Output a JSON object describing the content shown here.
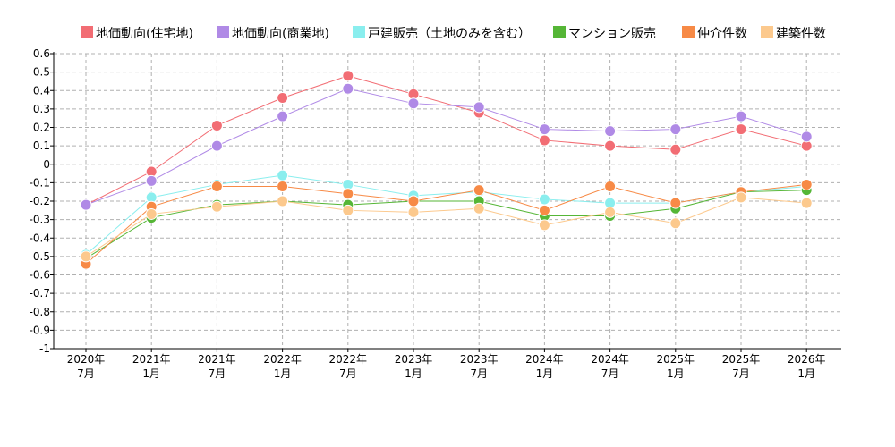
{
  "chart_data": {
    "type": "line",
    "categories": [
      [
        "2020年",
        "7月"
      ],
      [
        "2021年",
        "1月"
      ],
      [
        "2021年",
        "7月"
      ],
      [
        "2022年",
        "1月"
      ],
      [
        "2022年",
        "7月"
      ],
      [
        "2023年",
        "1月"
      ],
      [
        "2023年",
        "7月"
      ],
      [
        "2024年",
        "1月"
      ],
      [
        "2024年",
        "7月"
      ],
      [
        "2025年",
        "1月"
      ],
      [
        "2025年",
        "7月"
      ],
      [
        "2026年",
        "1月"
      ]
    ],
    "yticks": [
      "0.6",
      "0.5",
      "0.4",
      "0.3",
      "0.2",
      "0.1",
      "0",
      "-0.1",
      "-0.2",
      "-0.3",
      "-0.4",
      "-0.5",
      "-0.6",
      "-0.7",
      "-0.8",
      "-0.9",
      "-1"
    ],
    "ylim": [
      -1,
      0.6
    ],
    "grid": true,
    "legend_position": "top",
    "series": [
      {
        "name": "地価動向(住宅地)",
        "color": "#f26d74",
        "values": [
          -0.22,
          -0.04,
          0.21,
          0.36,
          0.48,
          0.38,
          0.28,
          0.13,
          0.1,
          0.08,
          0.19,
          0.1
        ]
      },
      {
        "name": "地価動向(商業地)",
        "color": "#b08ae6",
        "values": [
          -0.22,
          -0.09,
          0.1,
          0.26,
          0.41,
          0.33,
          0.31,
          0.19,
          0.18,
          0.19,
          0.26,
          0.15
        ]
      },
      {
        "name": "戸建販売（土地のみを含む）",
        "color": "#8aeeee",
        "values": [
          -0.49,
          -0.18,
          -0.11,
          -0.06,
          -0.11,
          -0.17,
          -0.15,
          -0.19,
          -0.21,
          -0.21,
          -0.15,
          -0.12
        ]
      },
      {
        "name": "マンション販売",
        "color": "#55b636",
        "values": [
          -0.51,
          -0.29,
          -0.22,
          -0.2,
          -0.22,
          -0.2,
          -0.2,
          -0.28,
          -0.28,
          -0.24,
          -0.15,
          -0.14
        ]
      },
      {
        "name": "仲介件数",
        "color": "#f78a46",
        "values": [
          -0.54,
          -0.23,
          -0.12,
          -0.12,
          -0.16,
          -0.2,
          -0.14,
          -0.25,
          -0.12,
          -0.21,
          -0.15,
          -0.11
        ]
      },
      {
        "name": "建築件数",
        "color": "#fcc98d",
        "values": [
          -0.5,
          -0.27,
          -0.23,
          -0.2,
          -0.25,
          -0.26,
          -0.24,
          -0.33,
          -0.26,
          -0.32,
          -0.18,
          -0.21
        ]
      }
    ]
  }
}
